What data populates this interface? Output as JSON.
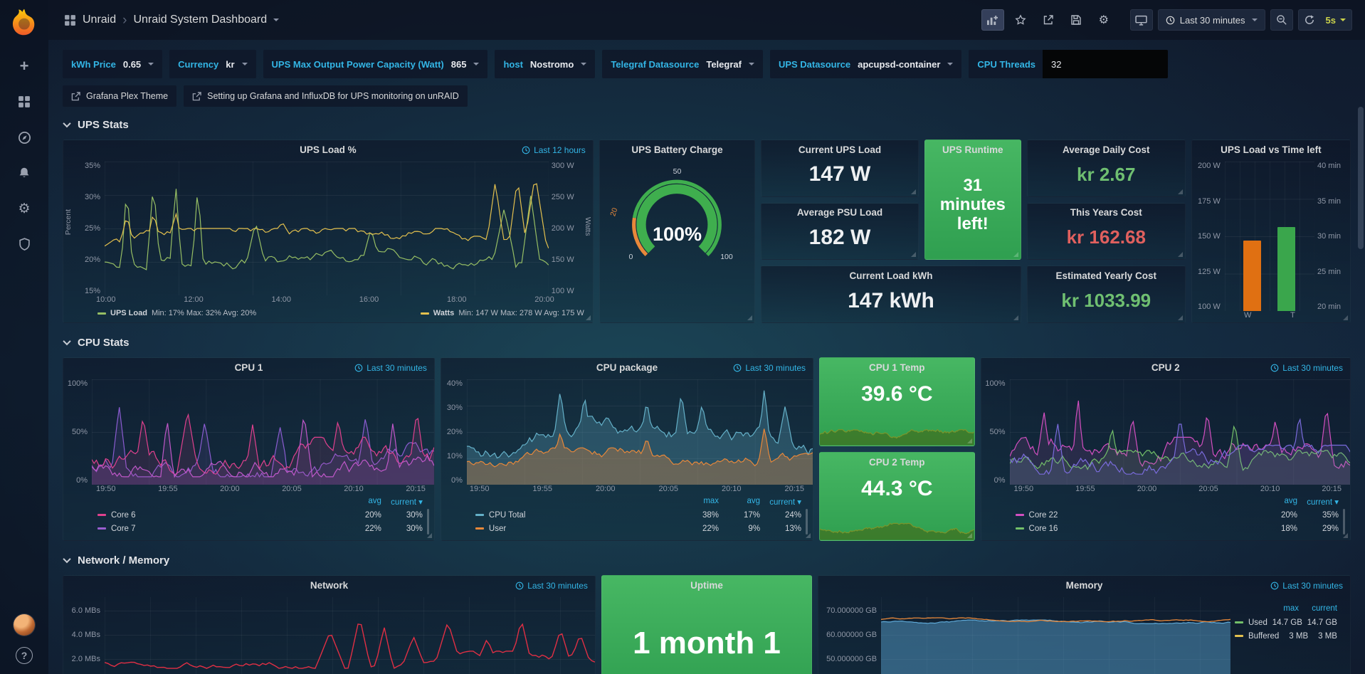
{
  "colors": {
    "accent_blue": "#33b5e5",
    "panel_green": "#3cb15c",
    "value_green": "#6fbf71",
    "value_red": "#e0605e",
    "refresh_yellow": "#cbd34b"
  },
  "icons": {
    "breadcrumb_sep": "›",
    "plus": "+",
    "gear": "⚙",
    "help": "?"
  },
  "navbar": {
    "folder": "Unraid",
    "title": "Unraid System Dashboard",
    "time_range": "Last 30 minutes",
    "refresh": "5s"
  },
  "variables": {
    "items": [
      {
        "label": "kWh Price",
        "value": "0.65"
      },
      {
        "label": "Currency",
        "value": "kr"
      },
      {
        "label": "UPS Max Output Power Capacity (Watt)",
        "value": "865"
      },
      {
        "label": "host",
        "value": "Nostromo"
      },
      {
        "label": "Telegraf Datasource",
        "value": "Telegraf"
      },
      {
        "label": "UPS Datasource",
        "value": "apcupsd-container"
      }
    ],
    "cpu_threads": {
      "label": "CPU Threads",
      "value": "32"
    }
  },
  "links": {
    "items": [
      {
        "label": "Grafana Plex Theme"
      },
      {
        "label": "Setting up Grafana and InfluxDB for UPS monitoring on unRAID"
      }
    ]
  },
  "sections": {
    "ups": "UPS Stats",
    "cpu": "CPU Stats",
    "net": "Network / Memory"
  },
  "panels": {
    "ups_load": {
      "title": "UPS Load %",
      "time_badge": "Last 12 hours",
      "y_left_label": "Percent",
      "y_left_ticks": [
        "35%",
        "30%",
        "25%",
        "20%",
        "15%"
      ],
      "y_right_label": "Watts",
      "y_right_ticks": [
        "300 W",
        "250 W",
        "200 W",
        "150 W",
        "100 W"
      ],
      "x_ticks": [
        "10:00",
        "12:00",
        "14:00",
        "16:00",
        "18:00",
        "20:00"
      ],
      "legend": [
        {
          "name": "UPS Load",
          "color": "#96be64",
          "stats": "Min: 17% Max: 32% Avg: 20%"
        },
        {
          "name": "Watts",
          "color": "#e3c04e",
          "stats": "Min: 147 W Max: 278 W Avg: 175 W"
        }
      ]
    },
    "battery": {
      "title": "UPS Battery Charge",
      "value": "100%",
      "min_label": "0",
      "mid_label": "50",
      "max_label": "100",
      "threshold_label": "20"
    },
    "current_ups_load": {
      "title": "Current UPS Load",
      "value": "147 W"
    },
    "avg_psu_load": {
      "title": "Average PSU Load",
      "value": "182 W"
    },
    "current_load_kwh": {
      "title": "Current Load kWh",
      "value": "147 kWh"
    },
    "ups_runtime": {
      "title": "UPS Runtime",
      "value": "31 minutes left!"
    },
    "avg_daily_cost": {
      "title": "Average Daily Cost",
      "value": "kr  2.67",
      "color": "#6fbf71"
    },
    "years_cost": {
      "title": "This Years Cost",
      "value": "kr  162.68",
      "color": "#e0605e"
    },
    "est_yearly_cost": {
      "title": "Estimated Yearly Cost",
      "value": "kr  1033.99",
      "color": "#6fbf71"
    },
    "ups_bar": {
      "title": "UPS Load vs Time left",
      "y_left_ticks": [
        "200 W",
        "175 W",
        "150 W",
        "125 W",
        "100 W"
      ],
      "y_right_ticks": [
        "40 min",
        "35 min",
        "30 min",
        "25 min",
        "20 min"
      ],
      "bars": [
        {
          "label": "W",
          "color": "#e07012",
          "height": "47%"
        },
        {
          "label": "T",
          "color": "#3aa64c",
          "height": "56%"
        }
      ]
    },
    "cpu1": {
      "title": "CPU 1",
      "time_badge": "Last 30 minutes",
      "y_ticks": [
        "100%",
        "50%",
        "0%"
      ],
      "x_ticks": [
        "19:50",
        "19:55",
        "20:00",
        "20:05",
        "20:10",
        "20:15"
      ],
      "legend_headers": [
        "avg",
        "current ▾"
      ],
      "legend": [
        {
          "name": "Core 6",
          "color": "#e0418e",
          "values": [
            "20%",
            "30%"
          ]
        },
        {
          "name": "Core 7",
          "color": "#9a5fd0",
          "values": [
            "22%",
            "30%"
          ]
        }
      ]
    },
    "cpu_package": {
      "title": "CPU package",
      "time_badge": "Last 30 minutes",
      "y_ticks": [
        "40%",
        "30%",
        "20%",
        "10%",
        "0%"
      ],
      "x_ticks": [
        "19:50",
        "19:55",
        "20:00",
        "20:05",
        "20:10",
        "20:15"
      ],
      "legend_headers": [
        "max",
        "avg",
        "current ▾"
      ],
      "legend": [
        {
          "name": "CPU Total",
          "color": "#64b0c8",
          "values": [
            "38%",
            "17%",
            "24%"
          ]
        },
        {
          "name": "User",
          "color": "#e8883a",
          "values": [
            "22%",
            "9%",
            "13%"
          ]
        }
      ]
    },
    "cpu1_temp": {
      "title": "CPU 1 Temp",
      "value": "39.6 °C"
    },
    "cpu2_temp": {
      "title": "CPU 2 Temp",
      "value": "44.3 °C"
    },
    "cpu2": {
      "title": "CPU 2",
      "time_badge": "Last 30 minutes",
      "y_ticks": [
        "100%",
        "50%",
        "0%"
      ],
      "x_ticks": [
        "19:50",
        "19:55",
        "20:00",
        "20:05",
        "20:10",
        "20:15"
      ],
      "legend_headers": [
        "avg",
        "current ▾"
      ],
      "legend": [
        {
          "name": "Core 22",
          "color": "#d24fc0",
          "values": [
            "20%",
            "35%"
          ]
        },
        {
          "name": "Core 16",
          "color": "#73bf69",
          "values": [
            "18%",
            "29%"
          ]
        }
      ]
    },
    "network": {
      "title": "Network",
      "time_badge": "Last 30 minutes",
      "y_ticks": [
        "6.0 MBs",
        "4.0 MBs",
        "2.0 MBs"
      ]
    },
    "uptime": {
      "title": "Uptime",
      "value": "1 month 1"
    },
    "memory": {
      "title": "Memory",
      "time_badge": "Last 30 minutes",
      "y_ticks": [
        "70.000000 GB",
        "60.000000 GB",
        "50.000000 GB"
      ],
      "legend_headers": [
        "max",
        "current"
      ],
      "legend": [
        {
          "name": "Used",
          "color": "#73bf69",
          "values": [
            "14.7 GB",
            "14.7 GB"
          ]
        },
        {
          "name": "Buffered",
          "color": "#e3c04e",
          "values": [
            "3 MB",
            "3 MB"
          ]
        }
      ]
    }
  }
}
